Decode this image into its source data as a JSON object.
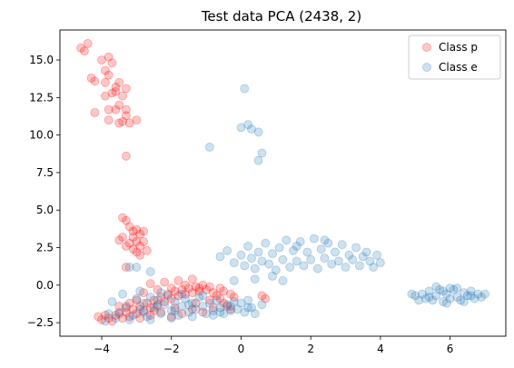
{
  "chart_data": {
    "type": "scatter",
    "title": "Test data PCA (2438, 2)",
    "xlabel": "",
    "ylabel": "",
    "xlim": [
      -5.2,
      7.6
    ],
    "ylim": [
      -3.4,
      17.0
    ],
    "xticks": [
      -4,
      -2,
      0,
      2,
      4,
      6
    ],
    "xtick_labels": [
      "−4",
      "−2",
      "0",
      "2",
      "4",
      "6"
    ],
    "yticks": [
      -2.5,
      0.0,
      2.5,
      5.0,
      7.5,
      10.0,
      12.5,
      15.0
    ],
    "ytick_labels": [
      "−2.5",
      "0.0",
      "2.5",
      "5.0",
      "7.5",
      "10.0",
      "12.5",
      "15.0"
    ],
    "grid": false,
    "legend_position": "top-right",
    "series": [
      {
        "name": "Class p",
        "color": "#ff0000",
        "alpha": 0.22,
        "marker": "circle",
        "points": [
          [
            -4.6,
            15.8
          ],
          [
            -4.4,
            16.1
          ],
          [
            -4.3,
            13.8
          ],
          [
            -4.5,
            15.6
          ],
          [
            -4.2,
            13.6
          ],
          [
            -4.0,
            15.0
          ],
          [
            -3.9,
            14.3
          ],
          [
            -3.8,
            15.2
          ],
          [
            -3.7,
            14.8
          ],
          [
            -3.6,
            13.2
          ],
          [
            -3.5,
            13.5
          ],
          [
            -3.8,
            14.0
          ],
          [
            -3.6,
            12.9
          ],
          [
            -3.9,
            12.6
          ],
          [
            -3.7,
            12.8
          ],
          [
            -3.4,
            12.6
          ],
          [
            -3.3,
            13.1
          ],
          [
            -3.5,
            12.0
          ],
          [
            -3.6,
            11.7
          ],
          [
            -3.3,
            11.3
          ],
          [
            -4.2,
            11.5
          ],
          [
            -3.8,
            11.0
          ],
          [
            -3.5,
            10.8
          ],
          [
            -3.4,
            10.9
          ],
          [
            -3.2,
            10.8
          ],
          [
            -3.0,
            11.0
          ],
          [
            -3.3,
            11.7
          ],
          [
            -3.8,
            11.7
          ],
          [
            -3.3,
            8.6
          ],
          [
            -3.9,
            13.5
          ],
          [
            -3.4,
            4.5
          ],
          [
            -3.3,
            4.3
          ],
          [
            -3.1,
            3.6
          ],
          [
            -3.0,
            3.7
          ],
          [
            -2.9,
            3.4
          ],
          [
            -2.8,
            3.6
          ],
          [
            -3.2,
            3.9
          ],
          [
            -3.4,
            3.2
          ],
          [
            -3.5,
            3.0
          ],
          [
            -3.3,
            2.6
          ],
          [
            -3.1,
            2.4
          ],
          [
            -3.2,
            2.8
          ],
          [
            -3.0,
            2.2
          ],
          [
            -2.9,
            2.6
          ],
          [
            -2.8,
            2.9
          ],
          [
            -2.7,
            2.3
          ],
          [
            -3.1,
            3.2
          ],
          [
            -3.3,
            1.2
          ],
          [
            -3.0,
            2.9
          ],
          [
            -2.9,
            2.0
          ],
          [
            -4.1,
            -2.1
          ],
          [
            -4.0,
            -2.3
          ],
          [
            -3.9,
            -2.0
          ],
          [
            -3.8,
            -2.2
          ],
          [
            -3.7,
            -2.4
          ],
          [
            -3.6,
            -2.0
          ],
          [
            -3.5,
            -1.9
          ],
          [
            -3.4,
            -2.2
          ],
          [
            -3.3,
            -1.8
          ],
          [
            -3.2,
            -2.1
          ],
          [
            -3.1,
            -1.6
          ],
          [
            -3.0,
            -1.9
          ],
          [
            -2.9,
            -1.4
          ],
          [
            -2.8,
            -1.7
          ],
          [
            -2.7,
            -1.2
          ],
          [
            -2.6,
            -1.5
          ],
          [
            -2.5,
            -1.0
          ],
          [
            -2.4,
            -1.3
          ],
          [
            -2.3,
            -0.8
          ],
          [
            -2.2,
            -1.1
          ],
          [
            -2.1,
            -0.6
          ],
          [
            -2.0,
            -0.9
          ],
          [
            -1.9,
            -0.4
          ],
          [
            -1.8,
            -0.7
          ],
          [
            -1.7,
            -0.3
          ],
          [
            -1.6,
            -0.6
          ],
          [
            -1.5,
            -0.2
          ],
          [
            -1.4,
            -0.5
          ],
          [
            -1.3,
            -0.1
          ],
          [
            -1.2,
            -0.4
          ],
          [
            -1.1,
            0.0
          ],
          [
            -1.0,
            -0.3
          ],
          [
            -0.9,
            -0.1
          ],
          [
            -0.8,
            -0.5
          ],
          [
            -0.7,
            -0.7
          ],
          [
            -0.6,
            -0.9
          ],
          [
            -0.5,
            -1.2
          ],
          [
            -0.4,
            -1.4
          ],
          [
            -0.3,
            -1.6
          ],
          [
            -0.2,
            -0.8
          ],
          [
            -3.0,
            -1.0
          ],
          [
            -2.8,
            -0.5
          ],
          [
            -2.6,
            0.1
          ],
          [
            -2.4,
            -0.3
          ],
          [
            -2.2,
            0.2
          ],
          [
            -2.0,
            -0.2
          ],
          [
            -1.8,
            0.3
          ],
          [
            -1.6,
            0.0
          ],
          [
            -1.4,
            0.4
          ],
          [
            -1.2,
            -0.2
          ],
          [
            -3.5,
            -1.4
          ],
          [
            -3.2,
            -1.2
          ],
          [
            -2.9,
            -2.2
          ],
          [
            -2.6,
            -2.0
          ],
          [
            -2.3,
            -1.8
          ],
          [
            -2.0,
            -2.1
          ],
          [
            -1.7,
            -1.9
          ],
          [
            -1.4,
            -1.6
          ],
          [
            -1.1,
            -1.8
          ],
          [
            -0.8,
            -1.5
          ],
          [
            -0.5,
            -0.4
          ],
          [
            -0.3,
            -0.6
          ],
          [
            0.6,
            -0.7
          ],
          [
            0.7,
            -0.9
          ],
          [
            -0.6,
            -0.2
          ],
          [
            -1.9,
            -1.5
          ],
          [
            -2.5,
            -1.7
          ],
          [
            -3.3,
            -1.5
          ],
          [
            -1.3,
            -1.2
          ],
          [
            -0.9,
            -1.0
          ]
        ]
      },
      {
        "name": "Class e",
        "color": "#1f77b4",
        "alpha": 0.22,
        "marker": "circle",
        "points": [
          [
            0.1,
            13.1
          ],
          [
            0.0,
            10.5
          ],
          [
            0.2,
            10.7
          ],
          [
            0.3,
            10.4
          ],
          [
            0.5,
            10.2
          ],
          [
            0.6,
            8.8
          ],
          [
            0.5,
            8.3
          ],
          [
            -0.9,
            9.2
          ],
          [
            -2.6,
            0.9
          ],
          [
            -3.0,
            1.2
          ],
          [
            -3.2,
            1.2
          ],
          [
            -3.7,
            -1.1
          ],
          [
            -3.5,
            -1.8
          ],
          [
            -3.3,
            -1.4
          ],
          [
            -3.1,
            -2.0
          ],
          [
            -3.0,
            -0.9
          ],
          [
            -2.9,
            -1.6
          ],
          [
            -2.8,
            -1.2
          ],
          [
            -2.7,
            -2.1
          ],
          [
            -2.6,
            -0.8
          ],
          [
            -2.5,
            -1.5
          ],
          [
            -2.4,
            -1.0
          ],
          [
            -2.3,
            -1.9
          ],
          [
            -2.2,
            -1.3
          ],
          [
            -2.1,
            -0.7
          ],
          [
            -2.0,
            -1.7
          ],
          [
            -1.9,
            -1.1
          ],
          [
            -1.8,
            -2.0
          ],
          [
            -1.7,
            -1.4
          ],
          [
            -1.6,
            -0.9
          ],
          [
            -1.5,
            -1.8
          ],
          [
            -1.4,
            -1.2
          ],
          [
            -1.3,
            -1.6
          ],
          [
            -1.2,
            -0.8
          ],
          [
            -1.1,
            -1.4
          ],
          [
            -1.0,
            -1.9
          ],
          [
            -0.9,
            -1.2
          ],
          [
            -0.8,
            -1.7
          ],
          [
            -0.7,
            -1.0
          ],
          [
            -0.6,
            -1.5
          ],
          [
            -0.5,
            -1.9
          ],
          [
            -0.4,
            -1.3
          ],
          [
            -0.3,
            -1.7
          ],
          [
            -0.2,
            -1.1
          ],
          [
            -0.1,
            -1.6
          ],
          [
            0.0,
            -1.2
          ],
          [
            0.1,
            -1.8
          ],
          [
            0.2,
            -1.0
          ],
          [
            0.3,
            -1.5
          ],
          [
            0.4,
            -1.9
          ],
          [
            0.6,
            -1.3
          ],
          [
            -3.4,
            -0.6
          ],
          [
            -3.2,
            -2.3
          ],
          [
            -2.9,
            -0.4
          ],
          [
            -2.6,
            -2.3
          ],
          [
            -2.3,
            -0.5
          ],
          [
            -2.0,
            -2.2
          ],
          [
            -1.7,
            -0.6
          ],
          [
            -1.4,
            -2.1
          ],
          [
            -1.1,
            -0.7
          ],
          [
            -0.8,
            -2.0
          ],
          [
            -3.9,
            -2.4
          ],
          [
            -3.6,
            -2.2
          ],
          [
            -3.8,
            -1.9
          ],
          [
            -2.4,
            -1.4
          ],
          [
            -1.9,
            -1.7
          ],
          [
            -1.5,
            -1.3
          ],
          [
            -0.6,
            -1.8
          ],
          [
            -0.3,
            -1.4
          ],
          [
            0.2,
            -1.5
          ],
          [
            -2.8,
            -1.8
          ],
          [
            -0.6,
            1.9
          ],
          [
            -0.4,
            2.3
          ],
          [
            -0.2,
            1.5
          ],
          [
            0.0,
            2.0
          ],
          [
            0.1,
            1.3
          ],
          [
            0.2,
            2.6
          ],
          [
            0.3,
            1.8
          ],
          [
            0.4,
            1.1
          ],
          [
            0.5,
            2.2
          ],
          [
            0.6,
            1.6
          ],
          [
            0.7,
            2.8
          ],
          [
            0.8,
            1.4
          ],
          [
            0.9,
            2.1
          ],
          [
            1.0,
            1.0
          ],
          [
            1.1,
            2.5
          ],
          [
            1.2,
            1.7
          ],
          [
            1.3,
            3.0
          ],
          [
            1.4,
            1.2
          ],
          [
            1.5,
            2.3
          ],
          [
            1.6,
            1.6
          ],
          [
            1.7,
            2.9
          ],
          [
            1.8,
            1.3
          ],
          [
            1.9,
            2.2
          ],
          [
            2.0,
            1.7
          ],
          [
            2.1,
            3.1
          ],
          [
            2.2,
            1.1
          ],
          [
            2.3,
            2.4
          ],
          [
            2.4,
            1.8
          ],
          [
            2.5,
            2.8
          ],
          [
            2.6,
            1.4
          ],
          [
            2.7,
            2.2
          ],
          [
            2.8,
            1.6
          ],
          [
            2.9,
            2.7
          ],
          [
            3.0,
            1.2
          ],
          [
            3.1,
            2.0
          ],
          [
            3.2,
            1.7
          ],
          [
            3.3,
            2.5
          ],
          [
            3.4,
            1.3
          ],
          [
            3.5,
            1.9
          ],
          [
            3.6,
            2.2
          ],
          [
            3.7,
            1.6
          ],
          [
            3.8,
            1.2
          ],
          [
            3.9,
            2.0
          ],
          [
            4.0,
            1.5
          ],
          [
            0.4,
            0.4
          ],
          [
            0.9,
            0.6
          ],
          [
            1.2,
            0.3
          ],
          [
            -0.2,
            0.3
          ],
          [
            1.6,
            2.6
          ],
          [
            2.4,
            3.0
          ],
          [
            5.2,
            -0.6
          ],
          [
            5.3,
            -0.9
          ],
          [
            5.4,
            -0.4
          ],
          [
            5.5,
            -1.0
          ],
          [
            5.6,
            -0.7
          ],
          [
            5.7,
            -0.3
          ],
          [
            5.8,
            -1.1
          ],
          [
            5.9,
            -0.6
          ],
          [
            6.0,
            -0.9
          ],
          [
            6.1,
            -0.3
          ],
          [
            6.2,
            -0.8
          ],
          [
            6.3,
            -1.0
          ],
          [
            6.4,
            -0.5
          ],
          [
            6.5,
            -0.7
          ],
          [
            6.6,
            -0.4
          ],
          [
            6.7,
            -0.9
          ],
          [
            6.8,
            -0.6
          ],
          [
            6.9,
            -0.8
          ],
          [
            5.6,
            -0.1
          ],
          [
            6.0,
            -0.2
          ],
          [
            5.0,
            -0.7
          ],
          [
            5.1,
            -1.0
          ],
          [
            4.9,
            -0.6
          ],
          [
            7.0,
            -0.6
          ],
          [
            5.8,
            -0.4
          ],
          [
            6.2,
            -0.2
          ],
          [
            5.4,
            -0.8
          ],
          [
            6.4,
            -1.1
          ],
          [
            5.9,
            -1.2
          ],
          [
            6.6,
            -0.7
          ]
        ]
      }
    ]
  }
}
